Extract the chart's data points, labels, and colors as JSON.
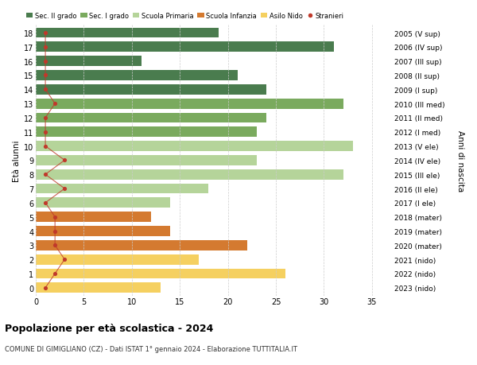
{
  "ages": [
    18,
    17,
    16,
    15,
    14,
    13,
    12,
    11,
    10,
    9,
    8,
    7,
    6,
    5,
    4,
    3,
    2,
    1,
    0
  ],
  "years": [
    "2005 (V sup)",
    "2006 (IV sup)",
    "2007 (III sup)",
    "2008 (II sup)",
    "2009 (I sup)",
    "2010 (III med)",
    "2011 (II med)",
    "2012 (I med)",
    "2013 (V ele)",
    "2014 (IV ele)",
    "2015 (III ele)",
    "2016 (II ele)",
    "2017 (I ele)",
    "2018 (mater)",
    "2019 (mater)",
    "2020 (mater)",
    "2021 (nido)",
    "2022 (nido)",
    "2023 (nido)"
  ],
  "bar_values": [
    19,
    31,
    11,
    21,
    24,
    32,
    24,
    23,
    33,
    23,
    32,
    18,
    14,
    12,
    14,
    22,
    17,
    26,
    13
  ],
  "bar_colors": [
    "#4a7c4e",
    "#4a7c4e",
    "#4a7c4e",
    "#4a7c4e",
    "#4a7c4e",
    "#7aaa5e",
    "#7aaa5e",
    "#7aaa5e",
    "#b5d49a",
    "#b5d49a",
    "#b5d49a",
    "#b5d49a",
    "#b5d49a",
    "#d47a30",
    "#d47a30",
    "#d47a30",
    "#f5d060",
    "#f5d060",
    "#f5d060"
  ],
  "stranieri_values": [
    1,
    1,
    1,
    1,
    1,
    2,
    1,
    1,
    1,
    3,
    1,
    3,
    1,
    2,
    2,
    2,
    3,
    2,
    1
  ],
  "legend_labels": [
    "Sec. II grado",
    "Sec. I grado",
    "Scuola Primaria",
    "Scuola Infanzia",
    "Asilo Nido",
    "Stranieri"
  ],
  "legend_colors": [
    "#4a7c4e",
    "#7aaa5e",
    "#b5d49a",
    "#d47a30",
    "#f5d060",
    "#c0392b"
  ],
  "title": "Popolazione per età scolastica - 2024",
  "subtitle": "COMUNE DI GIMIGLIANO (CZ) - Dati ISTAT 1° gennaio 2024 - Elaborazione TUTTITALIA.IT",
  "xlabel_right": "Anni di nascita",
  "ylabel": "Età alunni",
  "xlim": [
    0,
    37
  ],
  "stranieri_color": "#c0392b",
  "bar_height": 0.72,
  "bg_color": "#ffffff",
  "grid_color": "#cccccc"
}
